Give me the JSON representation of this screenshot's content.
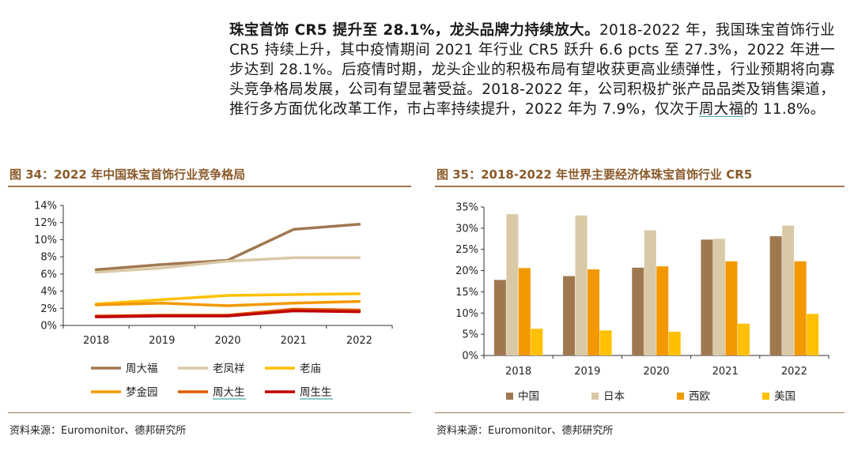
{
  "paragraph": {
    "lead_bold": "珠宝首饰 CR5 提升至 28.1%，龙头品牌力持续放大。",
    "body_1": "2018-2022 年，我国珠宝首饰行业 CR5 持续上升，其中疫情期间 2021 年行业 CR5 跃升 6.6 pcts 至 27.3%，2022 年进一步达到 28.1%。后疫情时期，龙头企业的积极布局有望收获更高业绩弹性，行业预期将向寡头竞争格局发展，公司有望显著受益。2018-2022 年，公司积极扩张产品品类及销售渠道，推行多方面优化改革工作，市占率持续提升，2022 年为 7.9%，仅次于",
    "underlined": "周大福",
    "body_2": "的 11.8%。"
  },
  "figure_left": {
    "title": "图 34：2022 年中国珠宝首饰行业竞争格局",
    "source": "资料来源：Euromonitor、德邦研究所"
  },
  "figure_right": {
    "title": "图 35：2018-2022 年世界主要经济体珠宝首饰行业 CR5",
    "source": "资料来源：Euromonitor、德邦研究所"
  },
  "chart_data": [
    {
      "type": "line",
      "title": "图 34：2022 年中国珠宝首饰行业竞争格局",
      "x": [
        "2018",
        "2019",
        "2020",
        "2021",
        "2022"
      ],
      "ylim": [
        0,
        14
      ],
      "yticks": [
        "0%",
        "2%",
        "4%",
        "6%",
        "8%",
        "10%",
        "12%",
        "14%"
      ],
      "series": [
        {
          "name": "周大福",
          "color": "#a07850",
          "values": [
            6.5,
            7.1,
            7.6,
            11.2,
            11.8
          ]
        },
        {
          "name": "老凤祥",
          "color": "#d9c9a6",
          "values": [
            6.2,
            6.7,
            7.5,
            7.9,
            7.9
          ]
        },
        {
          "name": "老庙",
          "color": "#ffc000",
          "values": [
            2.5,
            3.0,
            3.5,
            3.6,
            3.7
          ]
        },
        {
          "name": "梦金园",
          "color": "#f39800",
          "values": [
            2.4,
            2.6,
            2.3,
            2.6,
            2.8
          ]
        },
        {
          "name": "周大生",
          "color": "#e05a00",
          "values": [
            1.1,
            1.2,
            1.2,
            1.9,
            1.8
          ]
        },
        {
          "name": "周生生",
          "color": "#c00000",
          "values": [
            1.0,
            1.1,
            1.1,
            1.7,
            1.6
          ]
        }
      ],
      "legend_underlined": [
        "周大生",
        "周生生"
      ]
    },
    {
      "type": "bar",
      "title": "图 35：2018-2022 年世界主要经济体珠宝首饰行业 CR5",
      "categories": [
        "2018",
        "2019",
        "2020",
        "2021",
        "2022"
      ],
      "ylim": [
        0,
        35
      ],
      "yticks": [
        "0%",
        "5%",
        "10%",
        "15%",
        "20%",
        "25%",
        "30%",
        "35%"
      ],
      "series": [
        {
          "name": "中国",
          "color": "#a07850",
          "values": [
            17.8,
            18.7,
            20.7,
            27.3,
            28.1
          ]
        },
        {
          "name": "日本",
          "color": "#d9c9a6",
          "values": [
            33.3,
            33.0,
            29.5,
            27.5,
            30.6
          ]
        },
        {
          "name": "西欧",
          "color": "#f39800",
          "values": [
            20.6,
            20.3,
            21.0,
            22.2,
            22.2
          ]
        },
        {
          "name": "美国",
          "color": "#ffc000",
          "values": [
            6.3,
            5.9,
            5.6,
            7.5,
            9.8
          ]
        }
      ]
    }
  ]
}
